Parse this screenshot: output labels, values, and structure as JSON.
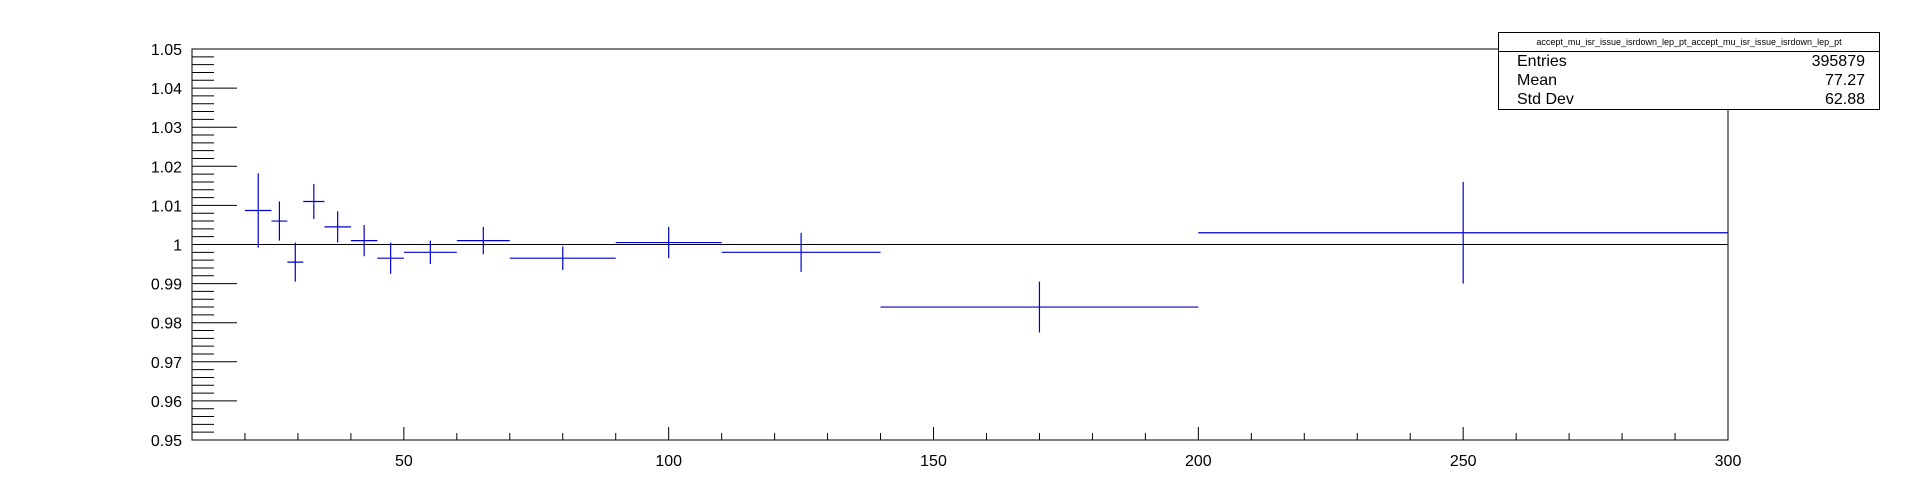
{
  "chart_data": {
    "type": "scatter",
    "xlim": [
      10,
      300
    ],
    "ylim": [
      0.95,
      1.05
    ],
    "x_ticks": [
      "50",
      "100",
      "150",
      "200",
      "250",
      "300"
    ],
    "y_ticks": [
      "0.95",
      "0.96",
      "0.97",
      "0.98",
      "0.99",
      "1",
      "1.01",
      "1.02",
      "1.03",
      "1.04",
      "1.05"
    ],
    "reference_line_y": 1.0,
    "series_color": "#0000cc",
    "points": [
      {
        "x": 22.5,
        "xerr": 2.5,
        "y": 1.0087,
        "yerr": 0.0095
      },
      {
        "x": 26.5,
        "xerr": 1.5,
        "y": 1.006,
        "yerr": 0.005
      },
      {
        "x": 29.5,
        "xerr": 1.5,
        "y": 0.9955,
        "yerr": 0.005
      },
      {
        "x": 33.0,
        "xerr": 2.0,
        "y": 1.011,
        "yerr": 0.0045
      },
      {
        "x": 37.5,
        "xerr": 2.5,
        "y": 1.0045,
        "yerr": 0.004
      },
      {
        "x": 42.5,
        "xerr": 2.5,
        "y": 1.001,
        "yerr": 0.004
      },
      {
        "x": 47.5,
        "xerr": 2.5,
        "y": 0.9965,
        "yerr": 0.004
      },
      {
        "x": 55.0,
        "xerr": 5.0,
        "y": 0.998,
        "yerr": 0.003
      },
      {
        "x": 65.0,
        "xerr": 5.0,
        "y": 1.001,
        "yerr": 0.0035
      },
      {
        "x": 80.0,
        "xerr": 10.0,
        "y": 0.9965,
        "yerr": 0.003
      },
      {
        "x": 100.0,
        "xerr": 10.0,
        "y": 1.0005,
        "yerr": 0.004
      },
      {
        "x": 125.0,
        "xerr": 15.0,
        "y": 0.998,
        "yerr": 0.005
      },
      {
        "x": 170.0,
        "xerr": 30.0,
        "y": 0.984,
        "yerr": 0.0065
      },
      {
        "x": 250.0,
        "xerr": 50.0,
        "y": 1.003,
        "yerr": 0.013
      }
    ]
  },
  "stats_box": {
    "title": "accept_mu_isr_issue_isrdown_lep_pt_accept_mu_isr_issue_isrdown_lep_pt",
    "entries_label": "Entries",
    "entries_value": "395879",
    "mean_label": "Mean",
    "mean_value": "77.27",
    "stddev_label": "Std Dev",
    "stddev_value": "62.88"
  }
}
